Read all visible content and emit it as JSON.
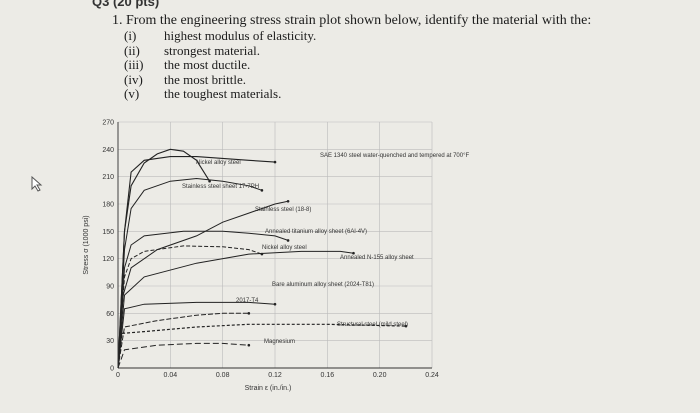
{
  "question": {
    "header": "Q3 (20 pts)",
    "prompt": "1.  From the engineering stress strain plot shown below, identify the material with the:",
    "items": [
      {
        "num": "(i)",
        "text": "highest modulus of elasticity."
      },
      {
        "num": "(ii)",
        "text": "strongest material."
      },
      {
        "num": "(iii)",
        "text": "the most ductile."
      },
      {
        "num": "(iv)",
        "text": "the most brittle."
      },
      {
        "num": "(v)",
        "text": "the toughest materials."
      }
    ]
  },
  "chart_data": {
    "type": "line",
    "xlabel": "Strain ε (in./in.)",
    "ylabel": "Stress σ (1000 psi)",
    "xlim": [
      0,
      0.24
    ],
    "ylim": [
      0,
      270
    ],
    "x_ticks": [
      "0",
      "0.04",
      "0.08",
      "0.12",
      "0.16",
      "0.20",
      "0.24"
    ],
    "y_ticks": [
      "0",
      "30",
      "60",
      "90",
      "120",
      "150",
      "180",
      "210",
      "240",
      "270"
    ],
    "series": [
      {
        "name": "SAE 1340 steel water-quenched and tempered at 700°F",
        "points": [
          [
            0,
            0
          ],
          [
            0.005,
            150
          ],
          [
            0.01,
            215
          ],
          [
            0.02,
            228
          ],
          [
            0.04,
            232
          ],
          [
            0.06,
            232
          ],
          [
            0.08,
            230
          ],
          [
            0.1,
            228
          ],
          [
            0.12,
            226
          ]
        ]
      },
      {
        "name": "Nickel alloy steel",
        "points": [
          [
            0,
            0
          ],
          [
            0.005,
            150
          ],
          [
            0.01,
            200
          ],
          [
            0.02,
            225
          ],
          [
            0.03,
            235
          ],
          [
            0.04,
            240
          ],
          [
            0.05,
            238
          ],
          [
            0.06,
            228
          ],
          [
            0.07,
            205
          ]
        ]
      },
      {
        "name": "Stainless steel sheet 17-7PH",
        "points": [
          [
            0,
            0
          ],
          [
            0.005,
            130
          ],
          [
            0.01,
            175
          ],
          [
            0.02,
            195
          ],
          [
            0.04,
            205
          ],
          [
            0.06,
            208
          ],
          [
            0.08,
            205
          ],
          [
            0.1,
            200
          ],
          [
            0.11,
            195
          ]
        ]
      },
      {
        "name": "Stainless steel (18-8)",
        "points": [
          [
            0,
            0
          ],
          [
            0.004,
            80
          ],
          [
            0.01,
            110
          ],
          [
            0.03,
            130
          ],
          [
            0.06,
            145
          ],
          [
            0.08,
            160
          ],
          [
            0.1,
            170
          ],
          [
            0.12,
            180
          ],
          [
            0.13,
            183
          ]
        ]
      },
      {
        "name": "Annealed titanium alloy sheet (6Al-4V)",
        "points": [
          [
            0,
            0
          ],
          [
            0.005,
            110
          ],
          [
            0.01,
            135
          ],
          [
            0.02,
            145
          ],
          [
            0.05,
            150
          ],
          [
            0.08,
            150
          ],
          [
            0.1,
            148
          ],
          [
            0.12,
            145
          ],
          [
            0.13,
            140
          ]
        ]
      },
      {
        "name": "Nickel alloy steel",
        "points": [
          [
            0,
            0
          ],
          [
            0.005,
            100
          ],
          [
            0.01,
            120
          ],
          [
            0.02,
            128
          ],
          [
            0.05,
            134
          ],
          [
            0.08,
            133
          ],
          [
            0.1,
            130
          ],
          [
            0.11,
            125
          ]
        ]
      },
      {
        "name": "Annealed N-155 alloy sheet",
        "points": [
          [
            0,
            0
          ],
          [
            0.005,
            80
          ],
          [
            0.02,
            100
          ],
          [
            0.06,
            115
          ],
          [
            0.1,
            125
          ],
          [
            0.14,
            128
          ],
          [
            0.17,
            128
          ],
          [
            0.18,
            126
          ]
        ]
      },
      {
        "name": "Bare aluminum alloy sheet (2024-T81)",
        "points": [
          [
            0,
            0
          ],
          [
            0.005,
            65
          ],
          [
            0.02,
            70
          ],
          [
            0.06,
            72
          ],
          [
            0.1,
            72
          ],
          [
            0.12,
            70
          ]
        ]
      },
      {
        "name": "2017-T4",
        "points": [
          [
            0,
            0
          ],
          [
            0.005,
            45
          ],
          [
            0.03,
            52
          ],
          [
            0.06,
            58
          ],
          [
            0.08,
            60
          ],
          [
            0.1,
            60
          ]
        ]
      },
      {
        "name": "Structural steel (mild steel)",
        "points": [
          [
            0,
            0
          ],
          [
            0.003,
            38
          ],
          [
            0.02,
            40
          ],
          [
            0.06,
            45
          ],
          [
            0.1,
            48
          ],
          [
            0.16,
            48
          ],
          [
            0.22,
            46
          ]
        ]
      },
      {
        "name": "Magnesium",
        "points": [
          [
            0,
            0
          ],
          [
            0.005,
            20
          ],
          [
            0.03,
            25
          ],
          [
            0.06,
            27
          ],
          [
            0.08,
            27
          ],
          [
            0.1,
            25
          ]
        ]
      }
    ]
  }
}
